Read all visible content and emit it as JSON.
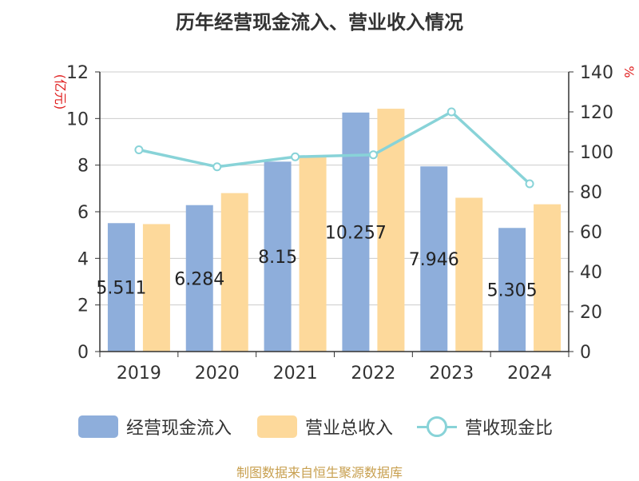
{
  "chart_data": {
    "type": "bar",
    "title": "历年经营现金流入、营业收入情况",
    "categories": [
      "2019",
      "2020",
      "2021",
      "2022",
      "2023",
      "2024"
    ],
    "y_left": {
      "label": "(亿元)",
      "range": [
        0,
        12
      ],
      "ticks": [
        "0",
        "2",
        "4",
        "6",
        "8",
        "10",
        "12"
      ]
    },
    "y_right": {
      "label": "%",
      "range": [
        0,
        140
      ],
      "ticks": [
        "0",
        "20",
        "40",
        "60",
        "80",
        "100",
        "120",
        "140"
      ]
    },
    "series": [
      {
        "name": "经营现金流入",
        "type": "bar",
        "axis": "left",
        "color": "#8eaedb",
        "values": [
          5.511,
          6.284,
          8.15,
          10.257,
          7.946,
          5.305
        ],
        "data_labels": [
          "5.511",
          "6.284",
          "8.15",
          "10.257",
          "7.946",
          "5.305"
        ]
      },
      {
        "name": "营业总收入",
        "type": "bar",
        "axis": "left",
        "color": "#fdd99b",
        "values": [
          5.47,
          6.8,
          8.35,
          10.42,
          6.6,
          6.32
        ]
      },
      {
        "name": "营收现金比",
        "type": "line",
        "axis": "right",
        "color": "#88d3d8",
        "values": [
          101,
          92.5,
          97.5,
          98.5,
          120,
          84
        ]
      }
    ],
    "grid": true,
    "legend_position": "bottom"
  },
  "footer": {
    "source": "制图数据来自恒生聚源数据库"
  }
}
